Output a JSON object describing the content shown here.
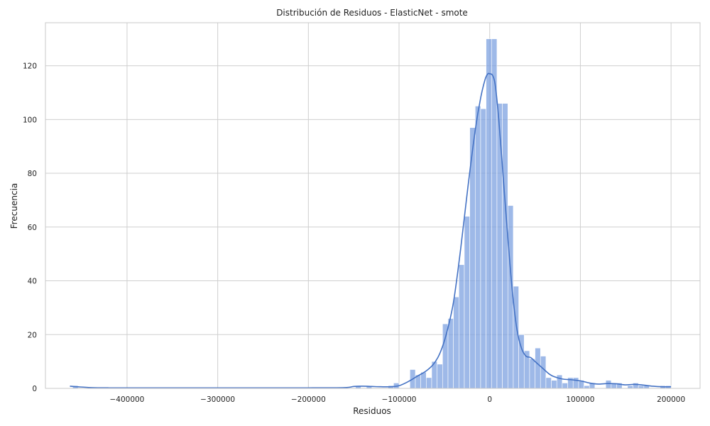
{
  "chart_data": {
    "type": "histogram",
    "title": "Distribución de Residuos - ElasticNet - smote",
    "xlabel": "Residuos",
    "ylabel": "Frecuencia",
    "xlim": [
      -490000,
      232000
    ],
    "ylim": [
      0,
      136
    ],
    "xticks": [
      -400000,
      -300000,
      -200000,
      -100000,
      0,
      100000,
      200000
    ],
    "xtick_labels": [
      "−400000",
      "−300000",
      "−200000",
      "−100000",
      "0",
      "100000",
      "200000"
    ],
    "yticks": [
      0,
      20,
      40,
      60,
      80,
      100,
      120
    ],
    "ytick_labels": [
      "0",
      "20",
      "40",
      "60",
      "80",
      "100",
      "120"
    ],
    "grid": true,
    "bin_width": 6000,
    "bar_color": "#7da1e0",
    "kde_color": "#4472c4",
    "bins": [
      {
        "x": -460000,
        "count": 1
      },
      {
        "x": -148000,
        "count": 1
      },
      {
        "x": -136000,
        "count": 1
      },
      {
        "x": -112000,
        "count": 1
      },
      {
        "x": -106000,
        "count": 2
      },
      {
        "x": -88000,
        "count": 7
      },
      {
        "x": -82000,
        "count": 5
      },
      {
        "x": -76000,
        "count": 6
      },
      {
        "x": -70000,
        "count": 4
      },
      {
        "x": -64000,
        "count": 10
      },
      {
        "x": -58000,
        "count": 9
      },
      {
        "x": -52000,
        "count": 24
      },
      {
        "x": -46000,
        "count": 26
      },
      {
        "x": -40000,
        "count": 34
      },
      {
        "x": -34000,
        "count": 46
      },
      {
        "x": -28000,
        "count": 64
      },
      {
        "x": -22000,
        "count": 97
      },
      {
        "x": -16000,
        "count": 105
      },
      {
        "x": -10000,
        "count": 104
      },
      {
        "x": -4000,
        "count": 130
      },
      {
        "x": 2000,
        "count": 130
      },
      {
        "x": 8000,
        "count": 106
      },
      {
        "x": 14000,
        "count": 106
      },
      {
        "x": 20000,
        "count": 68
      },
      {
        "x": 26000,
        "count": 38
      },
      {
        "x": 32000,
        "count": 20
      },
      {
        "x": 38000,
        "count": 14
      },
      {
        "x": 44000,
        "count": 11
      },
      {
        "x": 50000,
        "count": 15
      },
      {
        "x": 56000,
        "count": 12
      },
      {
        "x": 62000,
        "count": 4
      },
      {
        "x": 68000,
        "count": 3
      },
      {
        "x": 74000,
        "count": 5
      },
      {
        "x": 80000,
        "count": 2
      },
      {
        "x": 86000,
        "count": 4
      },
      {
        "x": 92000,
        "count": 4
      },
      {
        "x": 98000,
        "count": 3
      },
      {
        "x": 104000,
        "count": 1
      },
      {
        "x": 110000,
        "count": 2
      },
      {
        "x": 128000,
        "count": 3
      },
      {
        "x": 134000,
        "count": 2
      },
      {
        "x": 140000,
        "count": 2
      },
      {
        "x": 152000,
        "count": 1
      },
      {
        "x": 158000,
        "count": 2
      },
      {
        "x": 164000,
        "count": 1
      },
      {
        "x": 170000,
        "count": 1
      },
      {
        "x": 188000,
        "count": 1
      },
      {
        "x": 194000,
        "count": 1
      }
    ],
    "kde": {
      "x": [
        -463000,
        -455000,
        -440000,
        -420000,
        -400000,
        -300000,
        -200000,
        -160000,
        -150000,
        -140000,
        -130000,
        -120000,
        -110000,
        -100000,
        -90000,
        -80000,
        -70000,
        -62000,
        -55000,
        -48000,
        -40000,
        -32000,
        -24000,
        -16000,
        -10000,
        -5000,
        -2000,
        0,
        3000,
        6000,
        10000,
        15000,
        20000,
        25000,
        30000,
        35000,
        40000,
        45000,
        50000,
        55000,
        60000,
        65000,
        70000,
        80000,
        90000,
        100000,
        110000,
        120000,
        130000,
        140000,
        150000,
        160000,
        170000,
        180000,
        190000,
        200000
      ],
      "y": [
        0.8,
        0.6,
        0.3,
        0.2,
        0.2,
        0.2,
        0.2,
        0.3,
        0.7,
        0.8,
        0.7,
        0.6,
        0.6,
        1,
        2.5,
        4.5,
        6.5,
        9,
        13,
        20,
        32,
        52,
        75,
        96,
        108,
        115,
        117,
        117,
        116.5,
        113,
        100,
        78,
        56,
        36,
        22,
        15,
        12,
        11.5,
        10,
        8.5,
        7,
        5.5,
        4.5,
        3.5,
        3.2,
        2.8,
        2,
        1.6,
        1.8,
        1.7,
        1.3,
        1.5,
        1.2,
        0.8,
        0.6,
        0.6
      ]
    }
  }
}
